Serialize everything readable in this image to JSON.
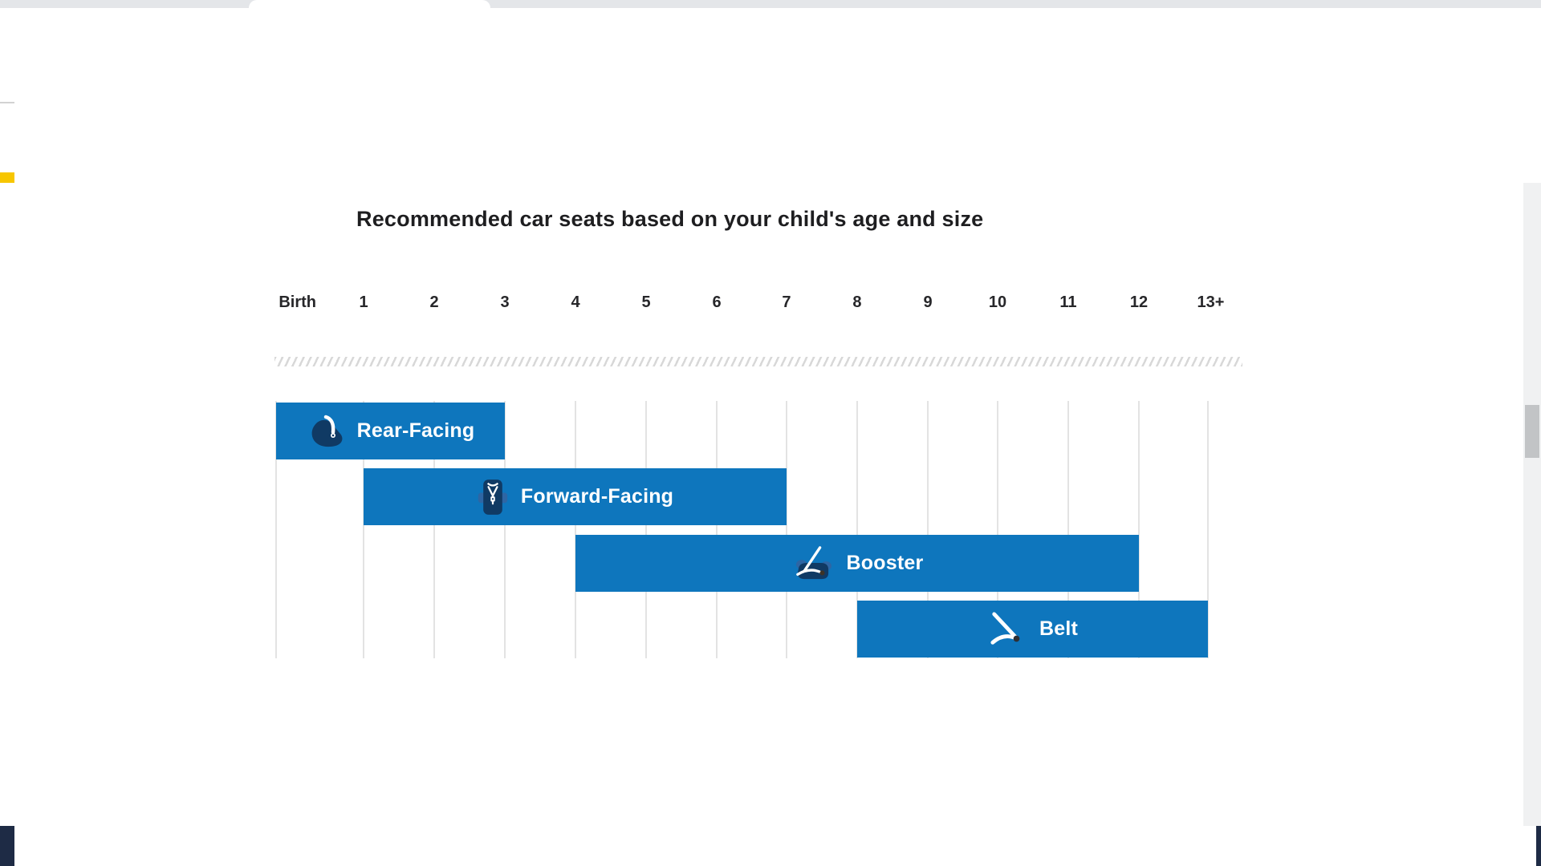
{
  "chart_data": {
    "type": "bar",
    "subtype": "horizontal-age-range-gantt",
    "title": "Recommended car seats based on your child's age and size",
    "xlabel": "",
    "ylabel": "",
    "legend": "none",
    "grid": "vertical-lines",
    "axis_range_years": [
      "Birth",
      "13+"
    ],
    "x_ticks": [
      {
        "label": "Birth",
        "pct": 0,
        "label_pct": 2.3
      },
      {
        "label": "1",
        "pct": 9.39
      },
      {
        "label": "2",
        "pct": 16.97
      },
      {
        "label": "3",
        "pct": 24.55
      },
      {
        "label": "4",
        "pct": 32.13
      },
      {
        "label": "5",
        "pct": 39.71
      },
      {
        "label": "6",
        "pct": 47.29
      },
      {
        "label": "7",
        "pct": 54.78
      },
      {
        "label": "8",
        "pct": 62.36
      },
      {
        "label": "9",
        "pct": 69.94
      },
      {
        "label": "10",
        "pct": 77.43
      },
      {
        "label": "11",
        "pct": 85.01
      },
      {
        "label": "12",
        "pct": 92.59
      },
      {
        "label": "13+",
        "pct": 100,
        "label_pct": 100.3
      }
    ],
    "series": [
      {
        "name": "Rear-Facing",
        "start_age": "Birth",
        "end_age": "3",
        "start_pct": 0,
        "end_pct": 24.55,
        "icon": "rear-facing-seat-icon"
      },
      {
        "name": "Forward-Facing",
        "start_age": "1",
        "end_age": "7",
        "start_pct": 9.39,
        "end_pct": 54.78,
        "icon": "forward-facing-seat-icon"
      },
      {
        "name": "Booster",
        "start_age": "4",
        "end_age": "12",
        "start_pct": 32.13,
        "end_pct": 92.59,
        "icon": "booster-seat-icon"
      },
      {
        "name": "Belt",
        "start_age": "8",
        "end_age": "13+",
        "start_pct": 62.36,
        "end_pct": 100,
        "icon": "seat-belt-icon"
      }
    ],
    "colors": {
      "bar": "#0E76BD",
      "bar_text": "#FFFFFF",
      "icon_navy": "#103A64",
      "gridline": "#E3E3E3",
      "hatch": "#D8D8D8",
      "title_text": "#1E1E20",
      "axis_text": "#27272A"
    }
  },
  "page_chrome": {
    "top_strip_color": "#E4E6E9",
    "accent_yellow": "#F7C600",
    "footer_navy": "#1E2B45",
    "scrollbar_track": "#F0F1F2",
    "scrollbar_thumb": "#C2C4C6"
  }
}
